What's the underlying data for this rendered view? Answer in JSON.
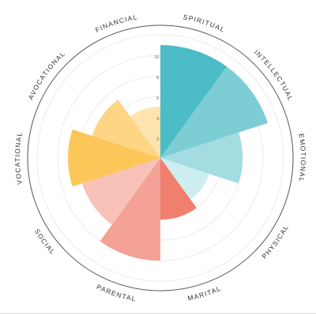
{
  "chart_data": {
    "type": "polar-area",
    "categories": [
      "SPIRITUAL",
      "INTELLECTUAL",
      "EMOTIONAL",
      "PHYSICAL",
      "MARITAL",
      "PARENTAL",
      "SOCIAL",
      "VOCATIONAL",
      "AVOCATIONAL",
      "FINANCIAL"
    ],
    "values": [
      11,
      11,
      8,
      5,
      6,
      10,
      8,
      9,
      7,
      5
    ],
    "radial_ticks": [
      "10",
      "8",
      "6",
      "4",
      "2"
    ],
    "rmax": 12,
    "grid": true,
    "colors": [
      "#4cbcc6",
      "#7dcdd4",
      "#a3dce1",
      "#cdeef1",
      "#f07f6e",
      "#f3a295",
      "#f8c2b9",
      "#fdc658",
      "#fdd584",
      "#fde3ae"
    ]
  }
}
